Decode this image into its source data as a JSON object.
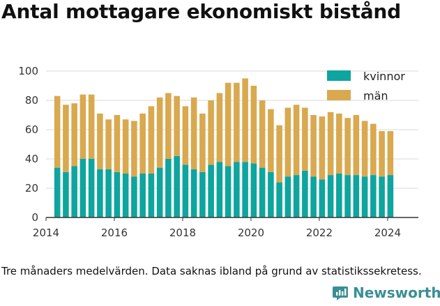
{
  "title": "Antal mottagare ekonomiskt bistånd",
  "footnote": "Tre månaders medelvärden. Data saknas ibland på grund av statistikssekretess.",
  "brand": "Newsworthy",
  "colors": {
    "kvinnor": "#0ea59e",
    "man": "#d9a94f",
    "grid": "#d9d9d9",
    "brand": "#3a8f95"
  },
  "chart_data": {
    "type": "bar",
    "stacked": true,
    "x_ticks": [
      "2014",
      "2016",
      "2018",
      "2020",
      "2022",
      "2024"
    ],
    "y_ticks": [
      "0",
      "20",
      "40",
      "60",
      "80",
      "100"
    ],
    "ylim": [
      0,
      100
    ],
    "xlim": [
      2014.0,
      2024.9
    ],
    "x": [
      2014.33,
      2014.58,
      2014.83,
      2015.08,
      2015.33,
      2015.58,
      2015.83,
      2016.08,
      2016.33,
      2016.58,
      2016.83,
      2017.08,
      2017.33,
      2017.58,
      2017.83,
      2018.08,
      2018.33,
      2018.58,
      2018.83,
      2019.08,
      2019.33,
      2019.58,
      2019.83,
      2020.08,
      2020.33,
      2020.58,
      2020.83,
      2021.08,
      2021.33,
      2021.58,
      2021.83,
      2022.08,
      2022.33,
      2022.58,
      2022.83,
      2023.08,
      2023.33,
      2023.58,
      2023.83,
      2024.08
    ],
    "legend_position": "top-right",
    "grid": true,
    "series": [
      {
        "name": "kvinnor",
        "values": [
          34,
          31,
          35,
          40,
          40,
          33,
          33,
          31,
          30,
          28,
          30,
          30,
          34,
          40,
          42,
          36,
          33,
          31,
          36,
          38,
          35,
          38,
          38,
          37,
          34,
          31,
          24,
          28,
          29,
          32,
          28,
          26,
          29,
          30,
          29,
          29,
          28,
          29,
          28,
          29
        ]
      },
      {
        "name": "män",
        "values": [
          49,
          46,
          43,
          44,
          44,
          38,
          34,
          39,
          37,
          38,
          41,
          46,
          48,
          45,
          41,
          40,
          49,
          40,
          44,
          47,
          57,
          54,
          57,
          53,
          46,
          43,
          39,
          47,
          48,
          43,
          42,
          43,
          43,
          41,
          39,
          41,
          38,
          35,
          31,
          30
        ]
      }
    ]
  }
}
